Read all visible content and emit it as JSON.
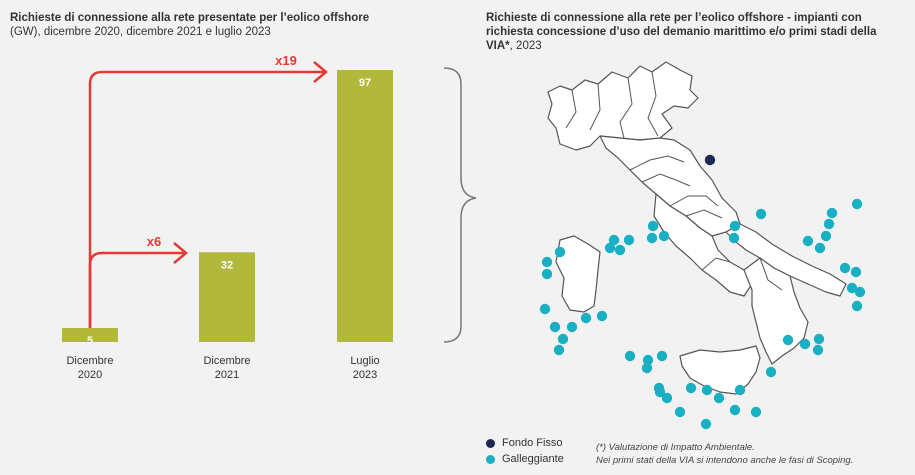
{
  "left_title": {
    "bold": "Richieste di connessione alla rete presentate per l’eolico offshore",
    "normal": "(GW), dicembre 2020, dicembre 2021 e luglio 2023"
  },
  "right_title": {
    "bold": "Richieste di connessione alla rete per l’eolico offshore - impianti con richiesta concessione d’uso del demanio marittimo e/o primi stadi della VIA*",
    "normal": ", 2023"
  },
  "chart_data": {
    "type": "bar",
    "categories": [
      "Dicembre 2020",
      "Dicembre 2021",
      "Luglio 2023"
    ],
    "category_lines": [
      [
        "Dicembre",
        "2020"
      ],
      [
        "Dicembre",
        "2021"
      ],
      [
        "Luglio",
        "2023"
      ]
    ],
    "values": [
      5,
      32,
      97
    ],
    "value_labels": [
      "5",
      "32",
      "97"
    ],
    "bar_color": "#b2b83b",
    "annotations": [
      {
        "label": "x6",
        "from": "Dicembre 2020",
        "to": "Dicembre 2021"
      },
      {
        "label": "x19",
        "from": "Dicembre 2020",
        "to": "Luglio 2023"
      }
    ],
    "annotation_color": "#e53935",
    "ylim": [
      0,
      97
    ],
    "xlabel": "",
    "ylabel": "",
    "grid": false
  },
  "map": {
    "region_fill": "#ffffff",
    "region_stroke": "#555555",
    "fixed_color": "#1c2a4f",
    "floating_color": "#19b0c3"
  },
  "legend": {
    "items": [
      {
        "label": "Fondo Fisso",
        "color": "#1c2a4f"
      },
      {
        "label": "Galleggiante",
        "color": "#19b0c3"
      }
    ]
  },
  "footnote": {
    "line1": "(*) Valutazione di Impatto Ambientale.",
    "line2": "Nei primi stati della VIA si intendono anche le fasi di Scoping."
  }
}
